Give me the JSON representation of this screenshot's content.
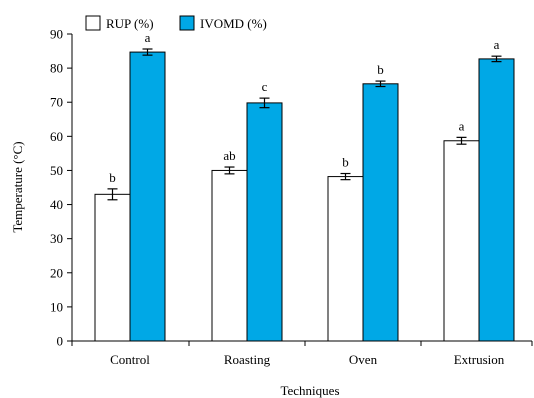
{
  "chart_data": {
    "type": "bar",
    "categories": [
      "Control",
      "Roasting",
      "Oven",
      "Extrusion"
    ],
    "series": [
      {
        "name": "RUP (%)",
        "color": "#ffffff",
        "values": [
          43,
          50,
          48.2,
          58.7
        ],
        "errors": [
          1.6,
          1.0,
          0.9,
          1.0
        ],
        "labels": [
          "b",
          "ab",
          "b",
          "a"
        ]
      },
      {
        "name": "IVOMD (%)",
        "color": "#00a8e6",
        "values": [
          84.7,
          69.8,
          75.4,
          82.7
        ],
        "errors": [
          0.9,
          1.4,
          0.8,
          0.8
        ],
        "labels": [
          "a",
          "c",
          "b",
          "a"
        ]
      }
    ],
    "xlabel": "Techniques",
    "ylabel": "Temperature (°C)",
    "ylim": [
      0,
      90
    ],
    "yticks": [
      0,
      10,
      20,
      30,
      40,
      50,
      60,
      70,
      80,
      90
    ],
    "grid": false,
    "legend": "top-left"
  }
}
